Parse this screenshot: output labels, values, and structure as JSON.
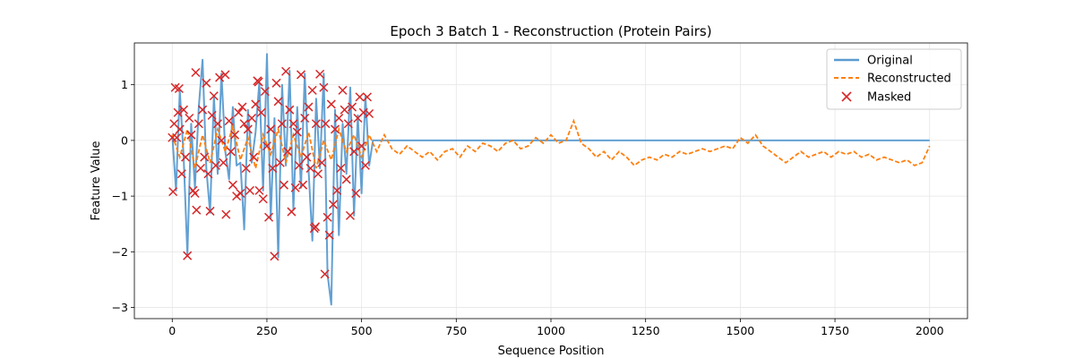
{
  "chart_data": {
    "type": "line",
    "title": "Epoch 3 Batch 1 - Reconstruction (Protein Pairs)",
    "xlabel": "Sequence Position",
    "ylabel": "Feature Value",
    "xlim": [
      -100,
      2100
    ],
    "ylim": [
      -3.2,
      1.75
    ],
    "xticks": [
      0,
      250,
      500,
      750,
      1000,
      1250,
      1500,
      1750,
      2000
    ],
    "yticks": [
      1,
      0,
      -1,
      -2,
      -3
    ],
    "ytick_labels": [
      "1",
      "0",
      "−1",
      "−2",
      "−3"
    ],
    "grid": true,
    "legend_position": "top-right",
    "series": [
      {
        "name": "Original",
        "style": "solid line",
        "color": "#5b9bd0",
        "points": [
          [
            0,
            0.1
          ],
          [
            10,
            -0.9
          ],
          [
            20,
            0.9
          ],
          [
            30,
            -0.3
          ],
          [
            40,
            -2.05
          ],
          [
            50,
            0.3
          ],
          [
            60,
            -0.85
          ],
          [
            70,
            0.6
          ],
          [
            80,
            1.45
          ],
          [
            90,
            -0.5
          ],
          [
            100,
            -1.3
          ],
          [
            110,
            0.8
          ],
          [
            120,
            -0.6
          ],
          [
            130,
            1.2
          ],
          [
            140,
            -0.2
          ],
          [
            150,
            -0.7
          ],
          [
            160,
            0.6
          ],
          [
            170,
            -0.45
          ],
          [
            180,
            -0.4
          ],
          [
            190,
            -1.6
          ],
          [
            200,
            0.55
          ],
          [
            210,
            -0.4
          ],
          [
            220,
            0.15
          ],
          [
            230,
            1.05
          ],
          [
            240,
            -0.9
          ],
          [
            250,
            1.55
          ],
          [
            260,
            -1.4
          ],
          [
            270,
            0.4
          ],
          [
            280,
            -2.1
          ],
          [
            290,
            1.0
          ],
          [
            300,
            -0.45
          ],
          [
            310,
            1.25
          ],
          [
            320,
            -1.25
          ],
          [
            330,
            0.6
          ],
          [
            340,
            -0.85
          ],
          [
            350,
            1.2
          ],
          [
            360,
            -0.55
          ],
          [
            370,
            -1.8
          ],
          [
            380,
            0.75
          ],
          [
            390,
            -0.5
          ],
          [
            400,
            1.2
          ],
          [
            410,
            -2.4
          ],
          [
            420,
            -2.95
          ],
          [
            430,
            0.55
          ],
          [
            440,
            -1.7
          ],
          [
            450,
            0.3
          ],
          [
            460,
            -0.6
          ],
          [
            470,
            0.95
          ],
          [
            480,
            -1.35
          ],
          [
            490,
            0.45
          ],
          [
            500,
            -0.95
          ],
          [
            510,
            0.8
          ],
          [
            520,
            -0.45
          ],
          [
            530,
            0.0
          ],
          [
            2000,
            0.0
          ]
        ]
      },
      {
        "name": "Reconstructed",
        "style": "dashed line",
        "color": "#ff7f0e",
        "points": [
          [
            0,
            0.1
          ],
          [
            20,
            -0.3
          ],
          [
            40,
            0.2
          ],
          [
            60,
            -0.5
          ],
          [
            80,
            0.1
          ],
          [
            100,
            -0.4
          ],
          [
            120,
            0.2
          ],
          [
            140,
            -0.2
          ],
          [
            160,
            0.25
          ],
          [
            180,
            -0.35
          ],
          [
            200,
            0.05
          ],
          [
            220,
            -0.5
          ],
          [
            240,
            0.1
          ],
          [
            260,
            -0.25
          ],
          [
            280,
            0.2
          ],
          [
            300,
            -0.4
          ],
          [
            320,
            0.1
          ],
          [
            340,
            -0.3
          ],
          [
            360,
            0.15
          ],
          [
            380,
            -0.5
          ],
          [
            400,
            0.0
          ],
          [
            420,
            -0.35
          ],
          [
            440,
            0.2
          ],
          [
            460,
            -0.2
          ],
          [
            480,
            0.1
          ],
          [
            500,
            -0.3
          ],
          [
            520,
            0.1
          ],
          [
            540,
            -0.2
          ],
          [
            560,
            0.1
          ],
          [
            580,
            -0.15
          ],
          [
            600,
            -0.25
          ],
          [
            620,
            -0.1
          ],
          [
            640,
            -0.2
          ],
          [
            660,
            -0.3
          ],
          [
            680,
            -0.2
          ],
          [
            700,
            -0.35
          ],
          [
            720,
            -0.2
          ],
          [
            740,
            -0.15
          ],
          [
            760,
            -0.3
          ],
          [
            780,
            -0.1
          ],
          [
            800,
            -0.2
          ],
          [
            820,
            -0.05
          ],
          [
            840,
            -0.1
          ],
          [
            860,
            -0.2
          ],
          [
            880,
            -0.05
          ],
          [
            900,
            0.0
          ],
          [
            920,
            -0.15
          ],
          [
            940,
            -0.1
          ],
          [
            960,
            0.05
          ],
          [
            980,
            -0.05
          ],
          [
            1000,
            0.1
          ],
          [
            1020,
            -0.05
          ],
          [
            1040,
            0.0
          ],
          [
            1060,
            0.35
          ],
          [
            1080,
            -0.05
          ],
          [
            1100,
            -0.15
          ],
          [
            1120,
            -0.3
          ],
          [
            1140,
            -0.2
          ],
          [
            1160,
            -0.35
          ],
          [
            1180,
            -0.2
          ],
          [
            1200,
            -0.3
          ],
          [
            1220,
            -0.45
          ],
          [
            1240,
            -0.35
          ],
          [
            1260,
            -0.3
          ],
          [
            1280,
            -0.35
          ],
          [
            1300,
            -0.25
          ],
          [
            1320,
            -0.3
          ],
          [
            1340,
            -0.2
          ],
          [
            1360,
            -0.25
          ],
          [
            1380,
            -0.2
          ],
          [
            1400,
            -0.15
          ],
          [
            1420,
            -0.2
          ],
          [
            1440,
            -0.15
          ],
          [
            1460,
            -0.1
          ],
          [
            1480,
            -0.15
          ],
          [
            1500,
            0.05
          ],
          [
            1520,
            -0.05
          ],
          [
            1540,
            0.1
          ],
          [
            1560,
            -0.1
          ],
          [
            1580,
            -0.2
          ],
          [
            1600,
            -0.3
          ],
          [
            1620,
            -0.4
          ],
          [
            1640,
            -0.3
          ],
          [
            1660,
            -0.2
          ],
          [
            1680,
            -0.3
          ],
          [
            1700,
            -0.25
          ],
          [
            1720,
            -0.2
          ],
          [
            1740,
            -0.3
          ],
          [
            1760,
            -0.2
          ],
          [
            1780,
            -0.25
          ],
          [
            1800,
            -0.2
          ],
          [
            1820,
            -0.3
          ],
          [
            1840,
            -0.25
          ],
          [
            1860,
            -0.35
          ],
          [
            1880,
            -0.3
          ],
          [
            1900,
            -0.35
          ],
          [
            1920,
            -0.4
          ],
          [
            1940,
            -0.35
          ],
          [
            1960,
            -0.45
          ],
          [
            1980,
            -0.4
          ],
          [
            2000,
            -0.1
          ]
        ]
      },
      {
        "name": "Masked",
        "style": "x markers",
        "color": "#d62728",
        "points": [
          [
            0,
            0.05
          ],
          [
            2,
            -0.92
          ],
          [
            5,
            0.3
          ],
          [
            8,
            0.95
          ],
          [
            12,
            0.05
          ],
          [
            15,
            0.5
          ],
          [
            18,
            0.93
          ],
          [
            20,
            0.2
          ],
          [
            25,
            -0.6
          ],
          [
            30,
            0.55
          ],
          [
            35,
            -0.3
          ],
          [
            40,
            -2.07
          ],
          [
            45,
            0.4
          ],
          [
            50,
            0.1
          ],
          [
            55,
            -0.9
          ],
          [
            60,
            -0.95
          ],
          [
            62,
            1.22
          ],
          [
            64,
            -1.25
          ],
          [
            70,
            0.3
          ],
          [
            75,
            -0.5
          ],
          [
            80,
            0.55
          ],
          [
            85,
            -0.3
          ],
          [
            90,
            1.03
          ],
          [
            95,
            -0.6
          ],
          [
            100,
            -1.27
          ],
          [
            105,
            0.45
          ],
          [
            110,
            0.8
          ],
          [
            115,
            -0.45
          ],
          [
            120,
            0.3
          ],
          [
            125,
            1.13
          ],
          [
            130,
            0.0
          ],
          [
            135,
            -0.4
          ],
          [
            140,
            1.18
          ],
          [
            142,
            -1.33
          ],
          [
            150,
            0.35
          ],
          [
            155,
            -0.2
          ],
          [
            160,
            -0.8
          ],
          [
            165,
            0.1
          ],
          [
            170,
            -1.0
          ],
          [
            175,
            0.5
          ],
          [
            180,
            -0.95
          ],
          [
            185,
            0.6
          ],
          [
            190,
            0.3
          ],
          [
            195,
            -0.5
          ],
          [
            200,
            0.2
          ],
          [
            205,
            -0.9
          ],
          [
            210,
            0.4
          ],
          [
            215,
            -0.3
          ],
          [
            220,
            0.65
          ],
          [
            225,
            1.07
          ],
          [
            228,
            1.05
          ],
          [
            230,
            -0.9
          ],
          [
            235,
            0.5
          ],
          [
            240,
            -1.05
          ],
          [
            245,
            0.88
          ],
          [
            250,
            -0.1
          ],
          [
            255,
            -1.38
          ],
          [
            260,
            0.2
          ],
          [
            265,
            -0.5
          ],
          [
            270,
            -2.08
          ],
          [
            275,
            1.03
          ],
          [
            280,
            0.7
          ],
          [
            285,
            -0.4
          ],
          [
            290,
            0.3
          ],
          [
            295,
            -0.8
          ],
          [
            300,
            1.24
          ],
          [
            305,
            -0.2
          ],
          [
            310,
            0.55
          ],
          [
            315,
            -1.28
          ],
          [
            320,
            0.3
          ],
          [
            325,
            -0.85
          ],
          [
            330,
            0.15
          ],
          [
            335,
            -0.45
          ],
          [
            340,
            1.18
          ],
          [
            345,
            -0.8
          ],
          [
            350,
            0.4
          ],
          [
            355,
            -0.3
          ],
          [
            360,
            0.6
          ],
          [
            365,
            -0.5
          ],
          [
            370,
            0.9
          ],
          [
            375,
            -1.58
          ],
          [
            378,
            -1.55
          ],
          [
            380,
            0.3
          ],
          [
            385,
            -0.6
          ],
          [
            390,
            1.19
          ],
          [
            395,
            -0.4
          ],
          [
            400,
            0.95
          ],
          [
            403,
            -2.4
          ],
          [
            405,
            0.3
          ],
          [
            410,
            -1.38
          ],
          [
            415,
            -1.7
          ],
          [
            420,
            0.65
          ],
          [
            425,
            -1.15
          ],
          [
            430,
            0.2
          ],
          [
            435,
            -0.9
          ],
          [
            440,
            0.4
          ],
          [
            445,
            -0.5
          ],
          [
            450,
            0.9
          ],
          [
            455,
            0.55
          ],
          [
            460,
            -0.7
          ],
          [
            465,
            0.3
          ],
          [
            470,
            -1.35
          ],
          [
            475,
            0.6
          ],
          [
            480,
            -0.2
          ],
          [
            485,
            -0.95
          ],
          [
            490,
            0.4
          ],
          [
            495,
            0.78
          ],
          [
            500,
            -0.1
          ],
          [
            505,
            0.5
          ],
          [
            510,
            -0.45
          ],
          [
            515,
            0.78
          ],
          [
            520,
            0.48
          ]
        ]
      }
    ]
  }
}
